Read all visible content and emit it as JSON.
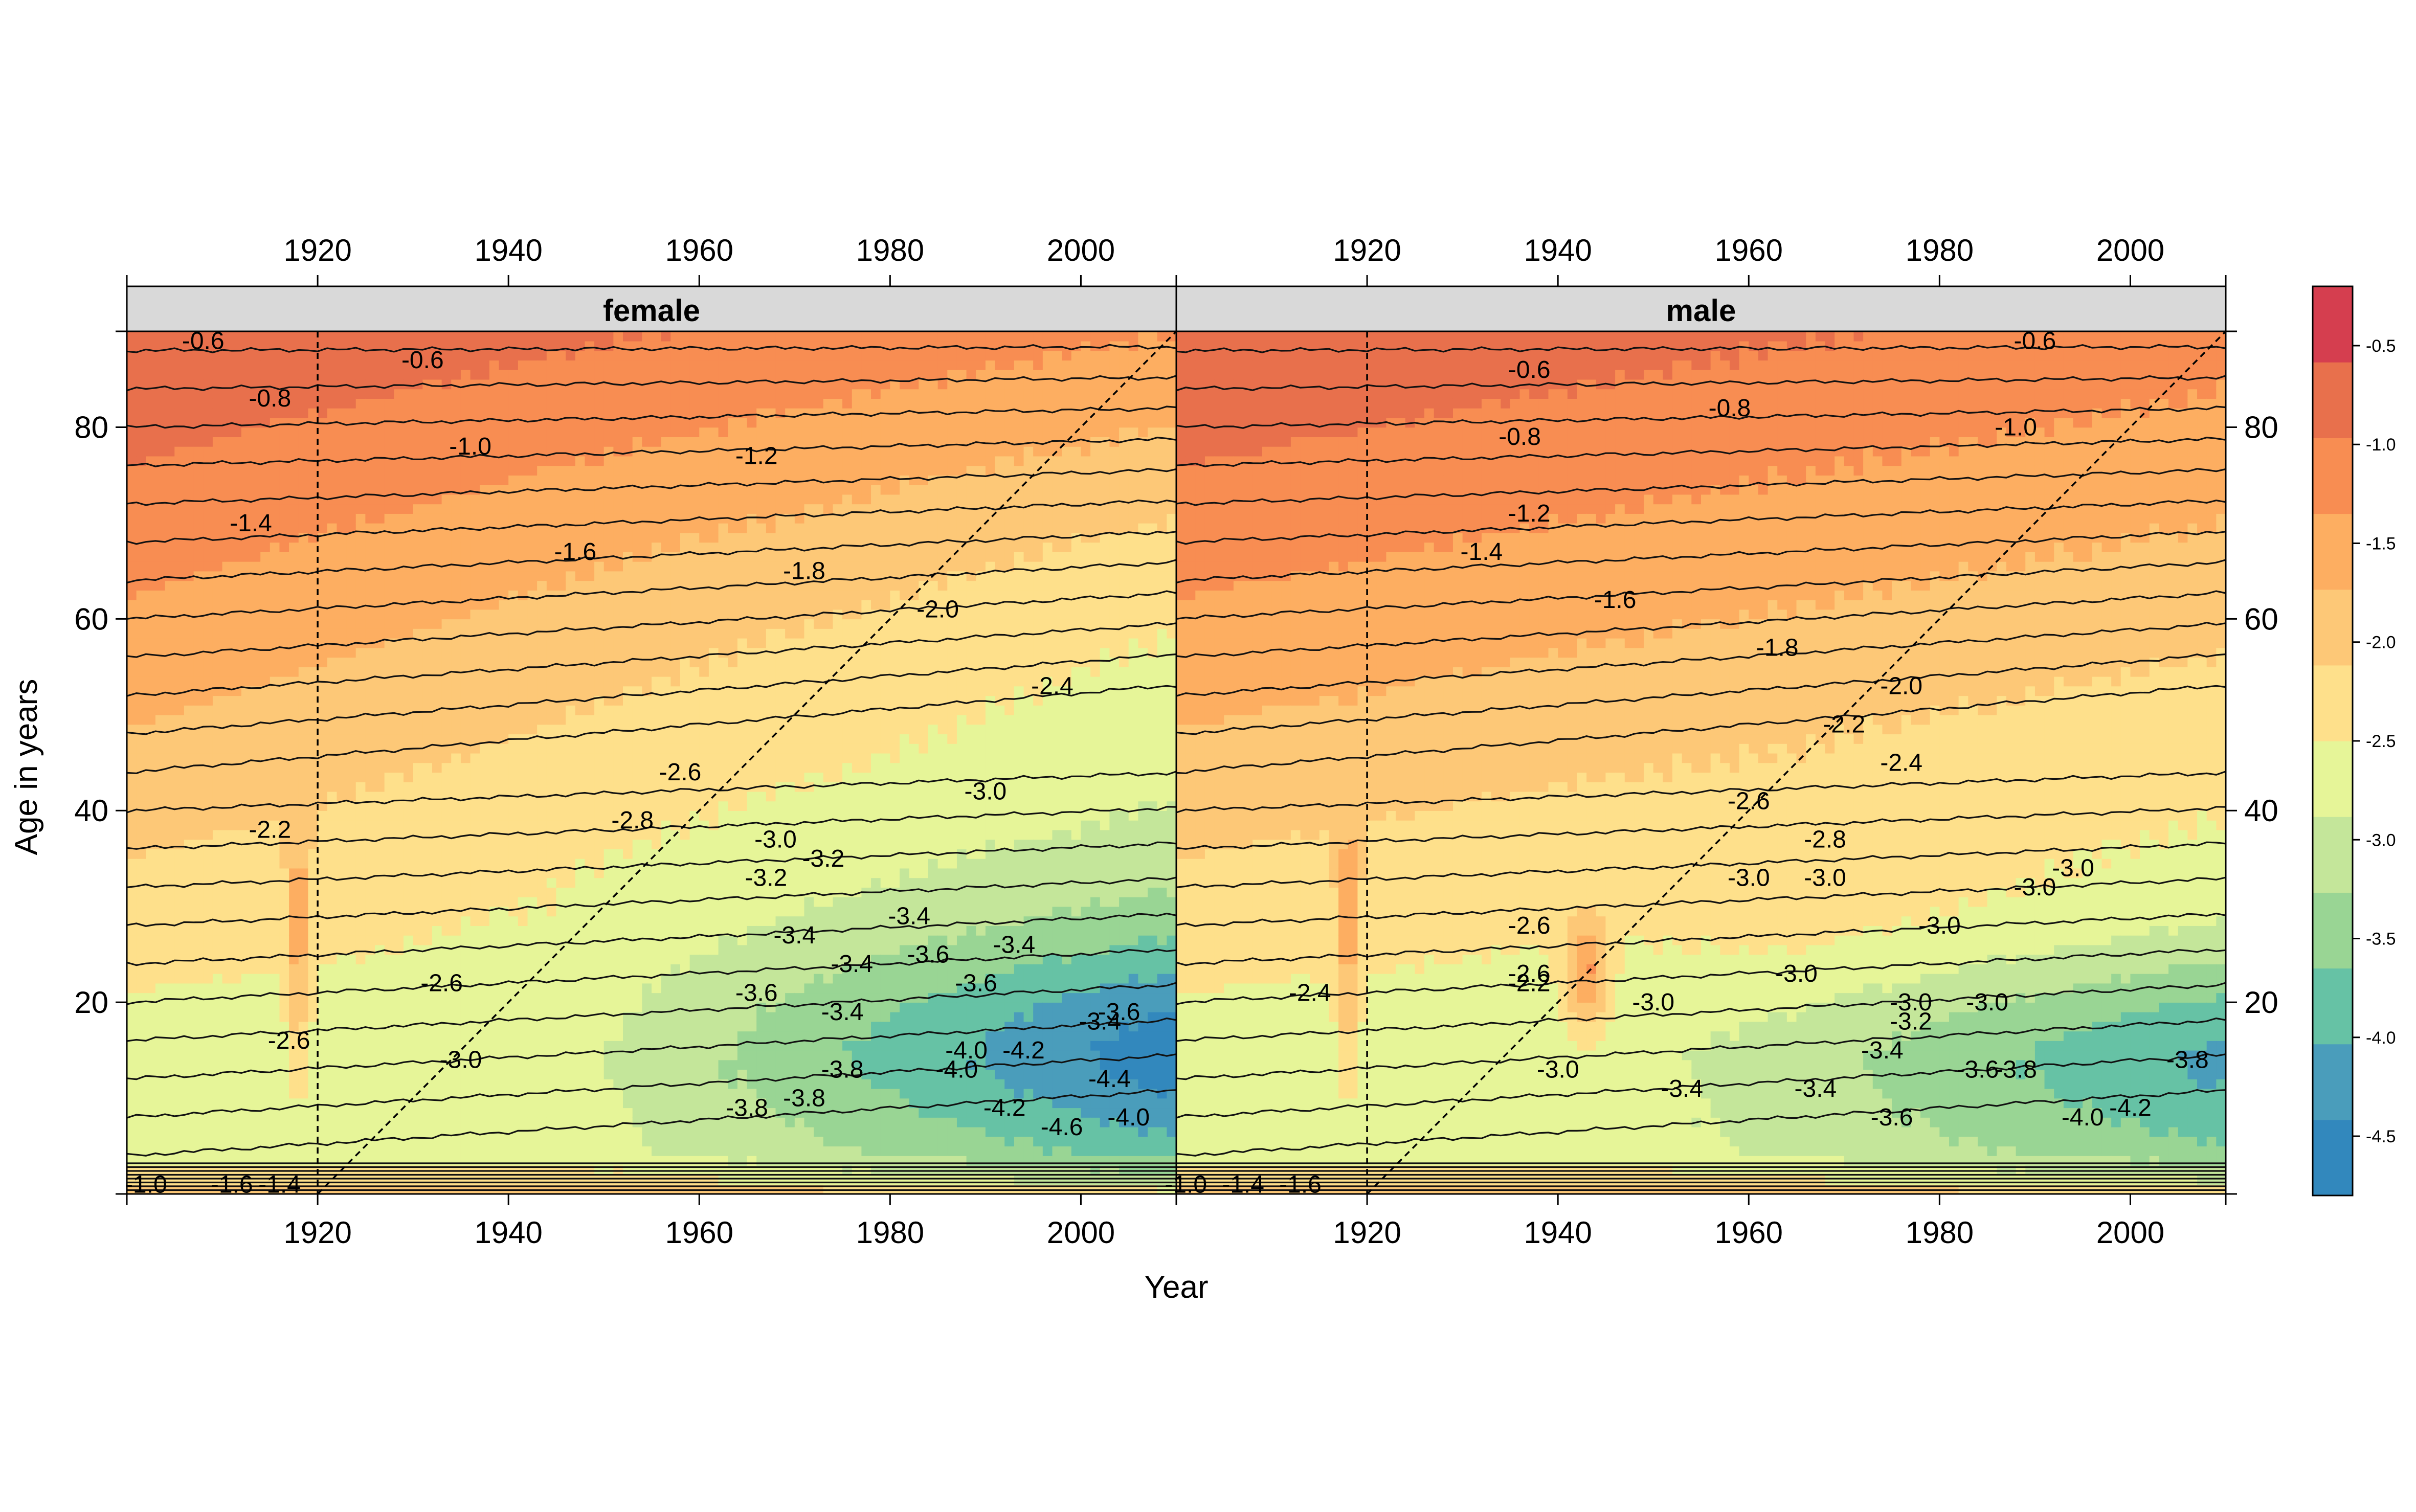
{
  "chart_data": {
    "type": "heatmap",
    "subtype": "filled-contour-panels",
    "xlabel": "Year",
    "ylabel": "Age in years",
    "xlim": [
      1900,
      2010
    ],
    "ylim": [
      0,
      90
    ],
    "x_ticks": [
      1920,
      1940,
      1960,
      1980,
      2000
    ],
    "y_ticks": [
      20,
      40,
      60,
      80
    ],
    "x_tick_labels": [
      "1920",
      "1940",
      "1960",
      "1980",
      "2000"
    ],
    "y_tick_labels": [
      "20",
      "40",
      "60",
      "80"
    ],
    "grid": false,
    "legend_position": "right",
    "reference_lines": {
      "vertical_year": 1920,
      "diagonal_cohort_birth_year": 1920
    },
    "colorbar": {
      "range": [
        -4.8,
        -0.2
      ],
      "ticks": [
        -4.5,
        -4.0,
        -3.5,
        -3.0,
        -2.5,
        -2.0,
        -1.5,
        -1.0,
        -0.5
      ],
      "tick_labels": [
        "-4.5",
        "-4.0",
        "-3.5",
        "-3.0",
        "-2.5",
        "-2.0",
        "-1.5",
        "-1.0",
        "-0.5"
      ],
      "colors": [
        "#3288bd",
        "#4a9dbb",
        "#66c2a5",
        "#99d594",
        "#c4e69a",
        "#e6f598",
        "#fee08b",
        "#fdc877",
        "#fdae61",
        "#f88d52",
        "#e8704c",
        "#d53e4f"
      ]
    },
    "panels": [
      {
        "name": "female",
        "contour_labels": [
          {
            "year": 1908,
            "age": 89,
            "text": "-0.6"
          },
          {
            "year": 1931,
            "age": 87,
            "text": "-0.6"
          },
          {
            "year": 1915,
            "age": 83,
            "text": "-0.8"
          },
          {
            "year": 1936,
            "age": 78,
            "text": "-1.0"
          },
          {
            "year": 1966,
            "age": 77,
            "text": "-1.2"
          },
          {
            "year": 1913,
            "age": 70,
            "text": "-1.4"
          },
          {
            "year": 1947,
            "age": 67,
            "text": "-1.6"
          },
          {
            "year": 1971,
            "age": 65,
            "text": "-1.8"
          },
          {
            "year": 1985,
            "age": 61,
            "text": "-2.0"
          },
          {
            "year": 1997,
            "age": 53,
            "text": "-2.4"
          },
          {
            "year": 1915,
            "age": 38,
            "text": "-2.2"
          },
          {
            "year": 1958,
            "age": 44,
            "text": "-2.6"
          },
          {
            "year": 1953,
            "age": 39,
            "text": "-2.8"
          },
          {
            "year": 1933,
            "age": 22,
            "text": "-2.6"
          },
          {
            "year": 1917,
            "age": 16,
            "text": "-2.6"
          },
          {
            "year": 1935,
            "age": 14,
            "text": "-3.0"
          },
          {
            "year": 1990,
            "age": 42,
            "text": "-3.0"
          },
          {
            "year": 1968,
            "age": 37,
            "text": "-3.0"
          },
          {
            "year": 1973,
            "age": 35,
            "text": "-3.2"
          },
          {
            "year": 1967,
            "age": 33,
            "text": "-3.2"
          },
          {
            "year": 1982,
            "age": 29,
            "text": "-3.4"
          },
          {
            "year": 1970,
            "age": 27,
            "text": "-3.4"
          },
          {
            "year": 1993,
            "age": 26,
            "text": "-3.4"
          },
          {
            "year": 1976,
            "age": 24,
            "text": "-3.4"
          },
          {
            "year": 1984,
            "age": 25,
            "text": "-3.6"
          },
          {
            "year": 1966,
            "age": 21,
            "text": "-3.6"
          },
          {
            "year": 1989,
            "age": 22,
            "text": "-3.6"
          },
          {
            "year": 1975,
            "age": 19,
            "text": "-3.4"
          },
          {
            "year": 1975,
            "age": 13,
            "text": "-3.8"
          },
          {
            "year": 1971,
            "age": 10,
            "text": "-3.8"
          },
          {
            "year": 1965,
            "age": 9,
            "text": "-3.8"
          },
          {
            "year": 1988,
            "age": 15,
            "text": "-4.0"
          },
          {
            "year": 1987,
            "age": 13,
            "text": "-4.0"
          },
          {
            "year": 1994,
            "age": 15,
            "text": "-4.2"
          },
          {
            "year": 1992,
            "age": 9,
            "text": "-4.2"
          },
          {
            "year": 2003,
            "age": 12,
            "text": "-4.4"
          },
          {
            "year": 2005,
            "age": 8,
            "text": "-4.0"
          },
          {
            "year": 1998,
            "age": 7,
            "text": "-4.6"
          },
          {
            "year": 2004,
            "age": 19,
            "text": "-3.6"
          },
          {
            "year": 2002,
            "age": 18,
            "text": "-3.4"
          },
          {
            "year": 1911,
            "age": 1,
            "text": "-1.6"
          },
          {
            "year": 1902,
            "age": 1,
            "text": "-1.0"
          },
          {
            "year": 1916,
            "age": 1,
            "text": "-1.4"
          }
        ]
      },
      {
        "name": "male",
        "contour_labels": [
          {
            "year": 1990,
            "age": 89,
            "text": "-0.6"
          },
          {
            "year": 1937,
            "age": 86,
            "text": "-0.6"
          },
          {
            "year": 1958,
            "age": 82,
            "text": "-0.8"
          },
          {
            "year": 1936,
            "age": 79,
            "text": "-0.8"
          },
          {
            "year": 1988,
            "age": 80,
            "text": "-1.0"
          },
          {
            "year": 1937,
            "age": 71,
            "text": "-1.2"
          },
          {
            "year": 1932,
            "age": 67,
            "text": "-1.4"
          },
          {
            "year": 1946,
            "age": 62,
            "text": "-1.6"
          },
          {
            "year": 1963,
            "age": 57,
            "text": "-1.8"
          },
          {
            "year": 1976,
            "age": 53,
            "text": "-2.0"
          },
          {
            "year": 1970,
            "age": 49,
            "text": "-2.2"
          },
          {
            "year": 1976,
            "age": 45,
            "text": "-2.4"
          },
          {
            "year": 1960,
            "age": 41,
            "text": "-2.6"
          },
          {
            "year": 1968,
            "age": 37,
            "text": "-2.8"
          },
          {
            "year": 1937,
            "age": 28,
            "text": "-2.6"
          },
          {
            "year": 1914,
            "age": 21,
            "text": "-2.4"
          },
          {
            "year": 1937,
            "age": 22,
            "text": "-2.2"
          },
          {
            "year": 1937,
            "age": 23,
            "text": "-2.6"
          },
          {
            "year": 1960,
            "age": 33,
            "text": "-3.0"
          },
          {
            "year": 1968,
            "age": 33,
            "text": "-3.0"
          },
          {
            "year": 1980,
            "age": 28,
            "text": "-3.0"
          },
          {
            "year": 1990,
            "age": 32,
            "text": "-3.0"
          },
          {
            "year": 1994,
            "age": 34,
            "text": "-3.0"
          },
          {
            "year": 1965,
            "age": 23,
            "text": "-3.0"
          },
          {
            "year": 1950,
            "age": 20,
            "text": "-3.0"
          },
          {
            "year": 1977,
            "age": 20,
            "text": "-3.0"
          },
          {
            "year": 1985,
            "age": 20,
            "text": "-3.0"
          },
          {
            "year": 1940,
            "age": 13,
            "text": "-3.0"
          },
          {
            "year": 1977,
            "age": 18,
            "text": "-3.2"
          },
          {
            "year": 1974,
            "age": 15,
            "text": "-3.4"
          },
          {
            "year": 1953,
            "age": 11,
            "text": "-3.4"
          },
          {
            "year": 1967,
            "age": 11,
            "text": "-3.4"
          },
          {
            "year": 1975,
            "age": 8,
            "text": "-3.6"
          },
          {
            "year": 1984,
            "age": 13,
            "text": "-3.6"
          },
          {
            "year": 1988,
            "age": 13,
            "text": "-3.8"
          },
          {
            "year": 1995,
            "age": 8,
            "text": "-4.0"
          },
          {
            "year": 2000,
            "age": 9,
            "text": "-4.2"
          },
          {
            "year": 2006,
            "age": 14,
            "text": "-3.8"
          },
          {
            "year": 1907,
            "age": 1,
            "text": "-1.4"
          },
          {
            "year": 1901,
            "age": 1,
            "text": "-1.0"
          },
          {
            "year": 1913,
            "age": 1,
            "text": "-1.6"
          }
        ]
      }
    ]
  }
}
